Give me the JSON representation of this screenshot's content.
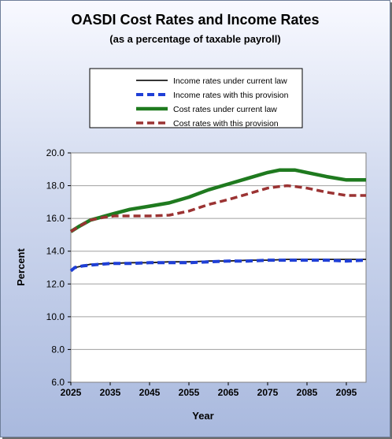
{
  "chart_data": {
    "type": "line",
    "title": "OASDI Cost Rates and Income Rates",
    "subtitle": "(as a percentage of taxable payroll)",
    "xlabel": "Year",
    "ylabel": "Percent",
    "xlim": [
      2025,
      2100
    ],
    "ylim": [
      6.0,
      20.0
    ],
    "x_ticks": [
      "2025",
      "2035",
      "2045",
      "2055",
      "2065",
      "2075",
      "2085",
      "2095"
    ],
    "x_tick_values": [
      2025,
      2035,
      2045,
      2055,
      2065,
      2075,
      2085,
      2095
    ],
    "y_ticks": [
      "6.0",
      "8.0",
      "10.0",
      "12.0",
      "14.0",
      "16.0",
      "18.0",
      "20.0"
    ],
    "y_tick_values": [
      6,
      8,
      10,
      12,
      14,
      16,
      18,
      20
    ],
    "grid": true,
    "legend_position": "top-center",
    "series": [
      {
        "name": "Income rates under current law",
        "color": "#1a1a1a",
        "dash": "solid",
        "x": [
          2025,
          2026,
          2028,
          2030,
          2035,
          2040,
          2045,
          2050,
          2055,
          2060,
          2065,
          2070,
          2075,
          2080,
          2085,
          2090,
          2095,
          2100
        ],
        "y": [
          12.8,
          13.0,
          13.1,
          13.2,
          13.25,
          13.3,
          13.3,
          13.35,
          13.35,
          13.4,
          13.4,
          13.45,
          13.45,
          13.5,
          13.5,
          13.5,
          13.5,
          13.5
        ]
      },
      {
        "name": "Income rates with this provision",
        "color": "#1f3fd6",
        "dash": "dashed",
        "x": [
          2025,
          2026,
          2028,
          2030,
          2035,
          2040,
          2045,
          2050,
          2055,
          2060,
          2065,
          2070,
          2075,
          2080,
          2085,
          2090,
          2095,
          2100
        ],
        "y": [
          12.8,
          13.0,
          13.1,
          13.15,
          13.25,
          13.25,
          13.3,
          13.3,
          13.3,
          13.35,
          13.4,
          13.4,
          13.45,
          13.45,
          13.45,
          13.45,
          13.4,
          13.45
        ]
      },
      {
        "name": "Cost rates under current law",
        "color": "#1f7a1f",
        "dash": "solid",
        "x": [
          2025,
          2027,
          2030,
          2033,
          2036,
          2040,
          2045,
          2050,
          2055,
          2060,
          2065,
          2070,
          2075,
          2078,
          2080,
          2082,
          2085,
          2090,
          2095,
          2100
        ],
        "y": [
          15.2,
          15.5,
          15.9,
          16.1,
          16.3,
          16.55,
          16.75,
          16.95,
          17.3,
          17.75,
          18.1,
          18.45,
          18.8,
          18.95,
          18.95,
          18.95,
          18.8,
          18.55,
          18.35,
          18.35
        ]
      },
      {
        "name": "Cost rates with this provision",
        "color": "#9b3333",
        "dash": "dashed",
        "x": [
          2025,
          2027,
          2030,
          2033,
          2036,
          2040,
          2045,
          2050,
          2055,
          2060,
          2065,
          2070,
          2075,
          2078,
          2080,
          2082,
          2085,
          2090,
          2095,
          2100
        ],
        "y": [
          15.2,
          15.5,
          15.9,
          16.05,
          16.15,
          16.15,
          16.15,
          16.2,
          16.45,
          16.85,
          17.15,
          17.5,
          17.85,
          17.95,
          18.0,
          17.95,
          17.85,
          17.6,
          17.4,
          17.4
        ]
      }
    ]
  }
}
